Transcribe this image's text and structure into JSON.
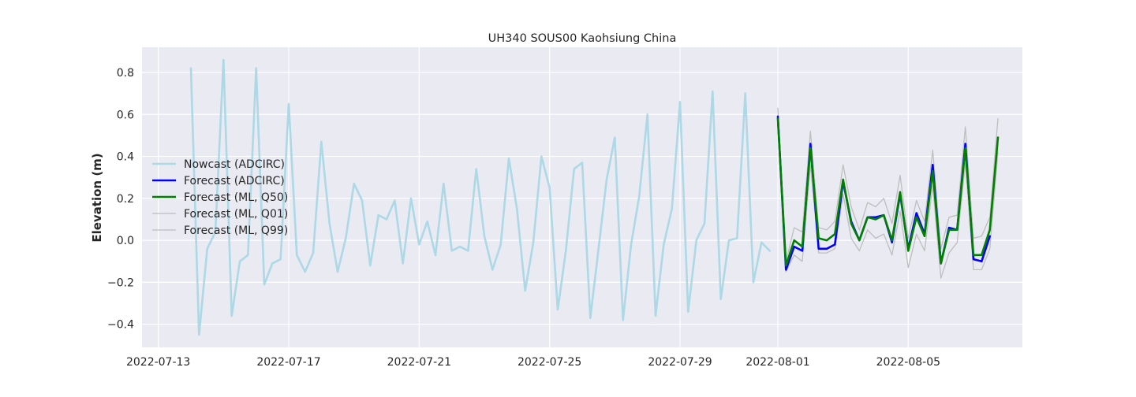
{
  "chart_data": {
    "type": "line",
    "title": "UH340 SOUS00 Kaohsiung China",
    "xlabel": "",
    "ylabel": "Elevation (m)",
    "x_axis": "date",
    "xlim": [
      "2022-07-12T12:00",
      "2022-08-08T12:00"
    ],
    "ylim": [
      -0.51,
      0.92
    ],
    "xticks": [
      "2022-07-13",
      "2022-07-17",
      "2022-07-21",
      "2022-07-25",
      "2022-07-29",
      "2022-08-01",
      "2022-08-05"
    ],
    "yticks": [
      -0.4,
      -0.2,
      0.0,
      0.2,
      0.4,
      0.6,
      0.8
    ],
    "ytick_labels": [
      "−0.4",
      "−0.2",
      "0.0",
      "0.2",
      "0.4",
      "0.6",
      "0.8"
    ],
    "grid": true,
    "background": "#eaeaf2",
    "legend_position": "center-left",
    "series": [
      {
        "name": "Nowcast (ADCIRC)",
        "color": "#add8e6",
        "width": 2.6,
        "x": [
          "2022-07-14T00:00",
          "2022-07-14T06:00",
          "2022-07-14T12:00",
          "2022-07-14T18:00",
          "2022-07-15T00:00",
          "2022-07-15T06:00",
          "2022-07-15T12:00",
          "2022-07-15T18:00",
          "2022-07-16T00:00",
          "2022-07-16T06:00",
          "2022-07-16T12:00",
          "2022-07-16T18:00",
          "2022-07-17T00:00",
          "2022-07-17T06:00",
          "2022-07-17T12:00",
          "2022-07-17T18:00",
          "2022-07-18T00:00",
          "2022-07-18T06:00",
          "2022-07-18T12:00",
          "2022-07-18T18:00",
          "2022-07-19T00:00",
          "2022-07-19T06:00",
          "2022-07-19T12:00",
          "2022-07-19T18:00",
          "2022-07-20T00:00",
          "2022-07-20T06:00",
          "2022-07-20T12:00",
          "2022-07-20T18:00",
          "2022-07-21T00:00",
          "2022-07-21T06:00",
          "2022-07-21T12:00",
          "2022-07-21T18:00",
          "2022-07-22T00:00",
          "2022-07-22T06:00",
          "2022-07-22T12:00",
          "2022-07-22T18:00",
          "2022-07-23T00:00",
          "2022-07-23T06:00",
          "2022-07-23T12:00",
          "2022-07-23T18:00",
          "2022-07-24T00:00",
          "2022-07-24T06:00",
          "2022-07-24T12:00",
          "2022-07-24T18:00",
          "2022-07-25T00:00",
          "2022-07-25T06:00",
          "2022-07-25T12:00",
          "2022-07-25T18:00",
          "2022-07-26T00:00",
          "2022-07-26T06:00",
          "2022-07-26T12:00",
          "2022-07-26T18:00",
          "2022-07-27T00:00",
          "2022-07-27T06:00",
          "2022-07-27T12:00",
          "2022-07-27T18:00",
          "2022-07-28T00:00",
          "2022-07-28T06:00",
          "2022-07-28T12:00",
          "2022-07-28T18:00",
          "2022-07-29T00:00",
          "2022-07-29T06:00",
          "2022-07-29T12:00",
          "2022-07-29T18:00",
          "2022-07-30T00:00",
          "2022-07-30T06:00",
          "2022-07-30T12:00",
          "2022-07-30T18:00",
          "2022-07-31T00:00",
          "2022-07-31T06:00",
          "2022-07-31T12:00",
          "2022-07-31T18:00"
        ],
        "y": [
          0.82,
          -0.45,
          -0.04,
          0.04,
          0.86,
          -0.36,
          -0.1,
          -0.07,
          0.82,
          -0.21,
          -0.11,
          -0.09,
          0.65,
          -0.07,
          -0.15,
          -0.06,
          0.47,
          0.08,
          -0.15,
          0.01,
          0.27,
          0.19,
          -0.12,
          0.12,
          0.1,
          0.19,
          -0.11,
          0.2,
          -0.02,
          0.09,
          -0.07,
          0.27,
          -0.05,
          -0.03,
          -0.05,
          0.34,
          0.02,
          -0.14,
          -0.02,
          0.39,
          0.15,
          -0.24,
          -0.01,
          0.4,
          0.25,
          -0.33,
          -0.05,
          0.34,
          0.37,
          -0.37,
          -0.04,
          0.29,
          0.49,
          -0.38,
          -0.02,
          0.21,
          0.6,
          -0.36,
          -0.02,
          0.15,
          0.66,
          -0.34,
          0.0,
          0.08,
          0.71,
          -0.28,
          0.0,
          0.01,
          0.7,
          -0.2,
          -0.01,
          -0.05
        ]
      },
      {
        "name": "Forecast (ADCIRC)",
        "color": "#0000ff",
        "width": 2.6,
        "x": [
          "2022-08-01T00:00",
          "2022-08-01T06:00",
          "2022-08-01T12:00",
          "2022-08-01T18:00",
          "2022-08-02T00:00",
          "2022-08-02T06:00",
          "2022-08-02T12:00",
          "2022-08-02T18:00",
          "2022-08-03T00:00",
          "2022-08-03T06:00",
          "2022-08-03T12:00",
          "2022-08-03T18:00",
          "2022-08-04T00:00",
          "2022-08-04T06:00",
          "2022-08-04T12:00",
          "2022-08-04T18:00",
          "2022-08-05T00:00",
          "2022-08-05T06:00",
          "2022-08-05T12:00",
          "2022-08-05T18:00",
          "2022-08-06T00:00",
          "2022-08-06T06:00",
          "2022-08-06T12:00",
          "2022-08-06T18:00",
          "2022-08-07T00:00",
          "2022-08-07T06:00",
          "2022-08-07T12:00",
          "2022-08-07T18:00"
        ],
        "y": [
          0.59,
          -0.14,
          -0.03,
          -0.05,
          0.46,
          -0.04,
          -0.04,
          -0.02,
          0.28,
          0.09,
          0.0,
          0.11,
          0.11,
          0.12,
          -0.01,
          0.22,
          -0.04,
          0.13,
          0.03,
          0.36,
          -0.11,
          0.06,
          0.05,
          0.46,
          -0.09,
          -0.1,
          0.02,
          null
        ]
      },
      {
        "name": "Forecast (ML, Q50)",
        "color": "#008000",
        "width": 2.6,
        "x": [
          "2022-08-01T00:00",
          "2022-08-01T06:00",
          "2022-08-01T12:00",
          "2022-08-01T18:00",
          "2022-08-02T00:00",
          "2022-08-02T06:00",
          "2022-08-02T12:00",
          "2022-08-02T18:00",
          "2022-08-03T00:00",
          "2022-08-03T06:00",
          "2022-08-03T12:00",
          "2022-08-03T18:00",
          "2022-08-04T00:00",
          "2022-08-04T06:00",
          "2022-08-04T12:00",
          "2022-08-04T18:00",
          "2022-08-05T00:00",
          "2022-08-05T06:00",
          "2022-08-05T12:00",
          "2022-08-05T18:00",
          "2022-08-06T00:00",
          "2022-08-06T06:00",
          "2022-08-06T12:00",
          "2022-08-06T18:00",
          "2022-08-07T00:00",
          "2022-08-07T06:00",
          "2022-08-07T12:00",
          "2022-08-07T18:00"
        ],
        "y": [
          0.58,
          -0.12,
          0.0,
          -0.03,
          0.44,
          0.01,
          0.0,
          0.03,
          0.29,
          0.08,
          0.0,
          0.11,
          0.1,
          0.12,
          0.0,
          0.23,
          -0.05,
          0.11,
          0.02,
          0.33,
          -0.11,
          0.05,
          0.05,
          0.44,
          -0.07,
          -0.07,
          0.05,
          0.49
        ]
      },
      {
        "name": "Forecast (ML, Q01)",
        "color": "#bebebe",
        "width": 1.3,
        "x": [
          "2022-08-01T00:00",
          "2022-08-01T06:00",
          "2022-08-01T12:00",
          "2022-08-01T18:00",
          "2022-08-02T00:00",
          "2022-08-02T06:00",
          "2022-08-02T12:00",
          "2022-08-02T18:00",
          "2022-08-03T00:00",
          "2022-08-03T06:00",
          "2022-08-03T12:00",
          "2022-08-03T18:00",
          "2022-08-04T00:00",
          "2022-08-04T06:00",
          "2022-08-04T12:00",
          "2022-08-04T18:00",
          "2022-08-05T00:00",
          "2022-08-05T06:00",
          "2022-08-05T12:00",
          "2022-08-05T18:00",
          "2022-08-06T00:00",
          "2022-08-06T06:00",
          "2022-08-06T12:00",
          "2022-08-06T18:00",
          "2022-08-07T00:00",
          "2022-08-07T06:00",
          "2022-08-07T12:00",
          "2022-08-07T18:00"
        ],
        "y": [
          0.55,
          -0.15,
          -0.07,
          -0.1,
          0.36,
          -0.06,
          -0.06,
          -0.04,
          0.22,
          0.01,
          -0.05,
          0.05,
          0.01,
          0.03,
          -0.07,
          0.14,
          -0.13,
          0.03,
          -0.05,
          0.26,
          -0.18,
          -0.06,
          -0.01,
          0.37,
          -0.14,
          -0.14,
          -0.04,
          0.42
        ]
      },
      {
        "name": "Forecast (ML, Q99)",
        "color": "#bebebe",
        "width": 1.3,
        "x": [
          "2022-08-01T00:00",
          "2022-08-01T06:00",
          "2022-08-01T12:00",
          "2022-08-01T18:00",
          "2022-08-02T00:00",
          "2022-08-02T06:00",
          "2022-08-02T12:00",
          "2022-08-02T18:00",
          "2022-08-03T00:00",
          "2022-08-03T06:00",
          "2022-08-03T12:00",
          "2022-08-03T18:00",
          "2022-08-04T00:00",
          "2022-08-04T06:00",
          "2022-08-04T12:00",
          "2022-08-04T18:00",
          "2022-08-05T00:00",
          "2022-08-05T06:00",
          "2022-08-05T12:00",
          "2022-08-05T18:00",
          "2022-08-06T00:00",
          "2022-08-06T06:00",
          "2022-08-06T12:00",
          "2022-08-06T18:00",
          "2022-08-07T00:00",
          "2022-08-07T06:00",
          "2022-08-07T12:00",
          "2022-08-07T18:00"
        ],
        "y": [
          0.63,
          -0.1,
          0.06,
          0.04,
          0.52,
          0.06,
          0.05,
          0.09,
          0.36,
          0.16,
          0.05,
          0.18,
          0.16,
          0.2,
          0.08,
          0.31,
          0.01,
          0.19,
          0.09,
          0.43,
          -0.04,
          0.11,
          0.12,
          0.54,
          0.01,
          0.02,
          0.11,
          0.58
        ]
      }
    ]
  }
}
